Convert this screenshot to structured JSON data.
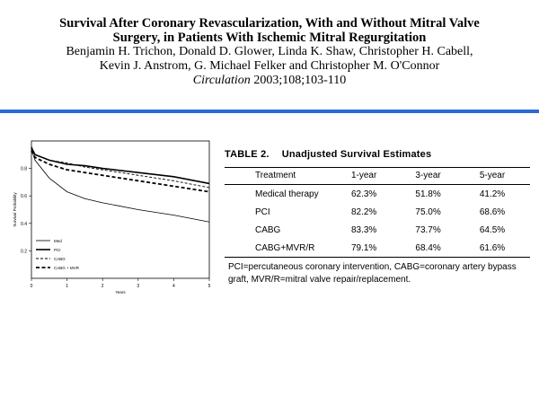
{
  "header": {
    "title_line1": "Survival After Coronary Revascularization, With and Without Mitral Valve",
    "title_line2": "Surgery, in Patients With Ischemic Mitral Regurgitation",
    "authors_line1": "Benjamin H. Trichon, Donald D. Glower, Linda K. Shaw, Christopher H. Cabell,",
    "authors_line2": "Kevin J. Anstrom, G. Michael Felker and Christopher M. O'Connor",
    "journal": "Circulation",
    "citation_rest": "2003;108;103-110"
  },
  "accent_color": "#2a6bd6",
  "figure": {
    "ylabel": "Survival Probability",
    "xlabel": "Years"
  },
  "table": {
    "title_prefix": "TABLE 2.",
    "title_text": "Unadjusted Survival Estimates",
    "headers": [
      "Treatment",
      "1-year",
      "3-year",
      "5-year"
    ],
    "rows": [
      [
        "Medical therapy",
        "62.3%",
        "51.8%",
        "41.2%"
      ],
      [
        "PCI",
        "82.2%",
        "75.0%",
        "68.6%"
      ],
      [
        "CABG",
        "83.3%",
        "73.7%",
        "64.5%"
      ],
      [
        "CABG+MVR/R",
        "79.1%",
        "68.4%",
        "61.6%"
      ]
    ],
    "footnote": "PCI=percutaneous coronary intervention, CABG=coronary artery bypass graft, MVR/R=mitral valve repair/replacement."
  },
  "chart_data": {
    "type": "line",
    "title": "",
    "xlabel": "Years",
    "ylabel": "Survival Probability",
    "xlim": [
      0,
      5
    ],
    "ylim": [
      0,
      1
    ],
    "xticks": [
      "0",
      "1",
      "2",
      "3",
      "4",
      "5"
    ],
    "yticks": [
      "0.2",
      "0.4",
      "0.6",
      "0.8"
    ],
    "legend_position": "bottom-left",
    "series": [
      {
        "name": "Med",
        "style": "thin-solid",
        "x": [
          0,
          0.1,
          0.5,
          1,
          1.5,
          2,
          3,
          4,
          5
        ],
        "y": [
          0.94,
          0.86,
          0.73,
          0.63,
          0.58,
          0.55,
          0.5,
          0.46,
          0.41
        ]
      },
      {
        "name": "PCI",
        "style": "thick-solid",
        "x": [
          0,
          0.1,
          0.5,
          1,
          1.5,
          2,
          3,
          4,
          5
        ],
        "y": [
          0.95,
          0.9,
          0.86,
          0.83,
          0.82,
          0.8,
          0.77,
          0.74,
          0.69
        ]
      },
      {
        "name": "CABG",
        "style": "thin-dashed",
        "x": [
          0,
          0.1,
          0.5,
          1,
          1.5,
          2,
          3,
          4,
          5
        ],
        "y": [
          0.96,
          0.9,
          0.86,
          0.84,
          0.81,
          0.79,
          0.75,
          0.71,
          0.66
        ]
      },
      {
        "name": "CABG + MVR",
        "style": "thick-dashed",
        "x": [
          0,
          0.1,
          0.5,
          1,
          1.5,
          2,
          3,
          4,
          5
        ],
        "y": [
          0.93,
          0.88,
          0.83,
          0.79,
          0.77,
          0.75,
          0.71,
          0.67,
          0.63
        ]
      }
    ]
  }
}
